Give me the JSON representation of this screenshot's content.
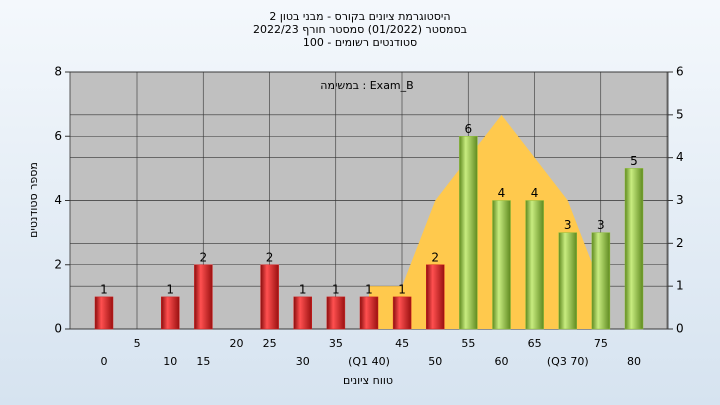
{
  "chart_data": {
    "type": "bar",
    "title": [
      "היסטוגרמת ציונים בקורס - מבני בטון 2",
      "בסמסטר  (01/2022)  סמסטר חורף 2022/23",
      "סטודנטים רשומים - 100"
    ],
    "annotation": "במשימה : Exam_B",
    "x_label": "טווח ציונים",
    "y_label": "מספר סטודנטים",
    "categories": [
      "0",
      "5",
      "10",
      "15",
      "20",
      "25",
      "30",
      "35",
      "(Q1 40)",
      "45",
      "50",
      "55",
      "60",
      "65",
      "(Q3 70)",
      "75",
      "80"
    ],
    "series": [
      {
        "values": [
          1,
          0,
          1,
          2,
          0,
          2,
          1,
          1,
          1,
          1,
          2,
          6,
          4,
          4,
          3,
          3,
          5
        ],
        "colors": [
          "#d42020",
          "#d42020",
          "#d42020",
          "#d42020",
          "#d42020",
          "#d42020",
          "#d42020",
          "#d42020",
          "#d42020",
          "#d42020",
          "#d42020",
          "#8fbf3a",
          "#8fbf3a",
          "#8fbf3a",
          "#8fbf3a",
          "#8fbf3a",
          "#8fbf3a"
        ]
      },
      {
        "type": "area",
        "axis": "y2",
        "color": "#ffc94d",
        "values": [
          null,
          null,
          null,
          null,
          null,
          null,
          null,
          null,
          1,
          1,
          3,
          4,
          5,
          4,
          3,
          1,
          null
        ]
      }
    ],
    "ylim": [
      0,
      8
    ],
    "yticks": [
      0,
      2,
      4,
      6,
      8
    ],
    "y2lim": [
      0,
      6
    ],
    "y2ticks": [
      0,
      1,
      2,
      3,
      4,
      5,
      6
    ],
    "grid": true
  }
}
